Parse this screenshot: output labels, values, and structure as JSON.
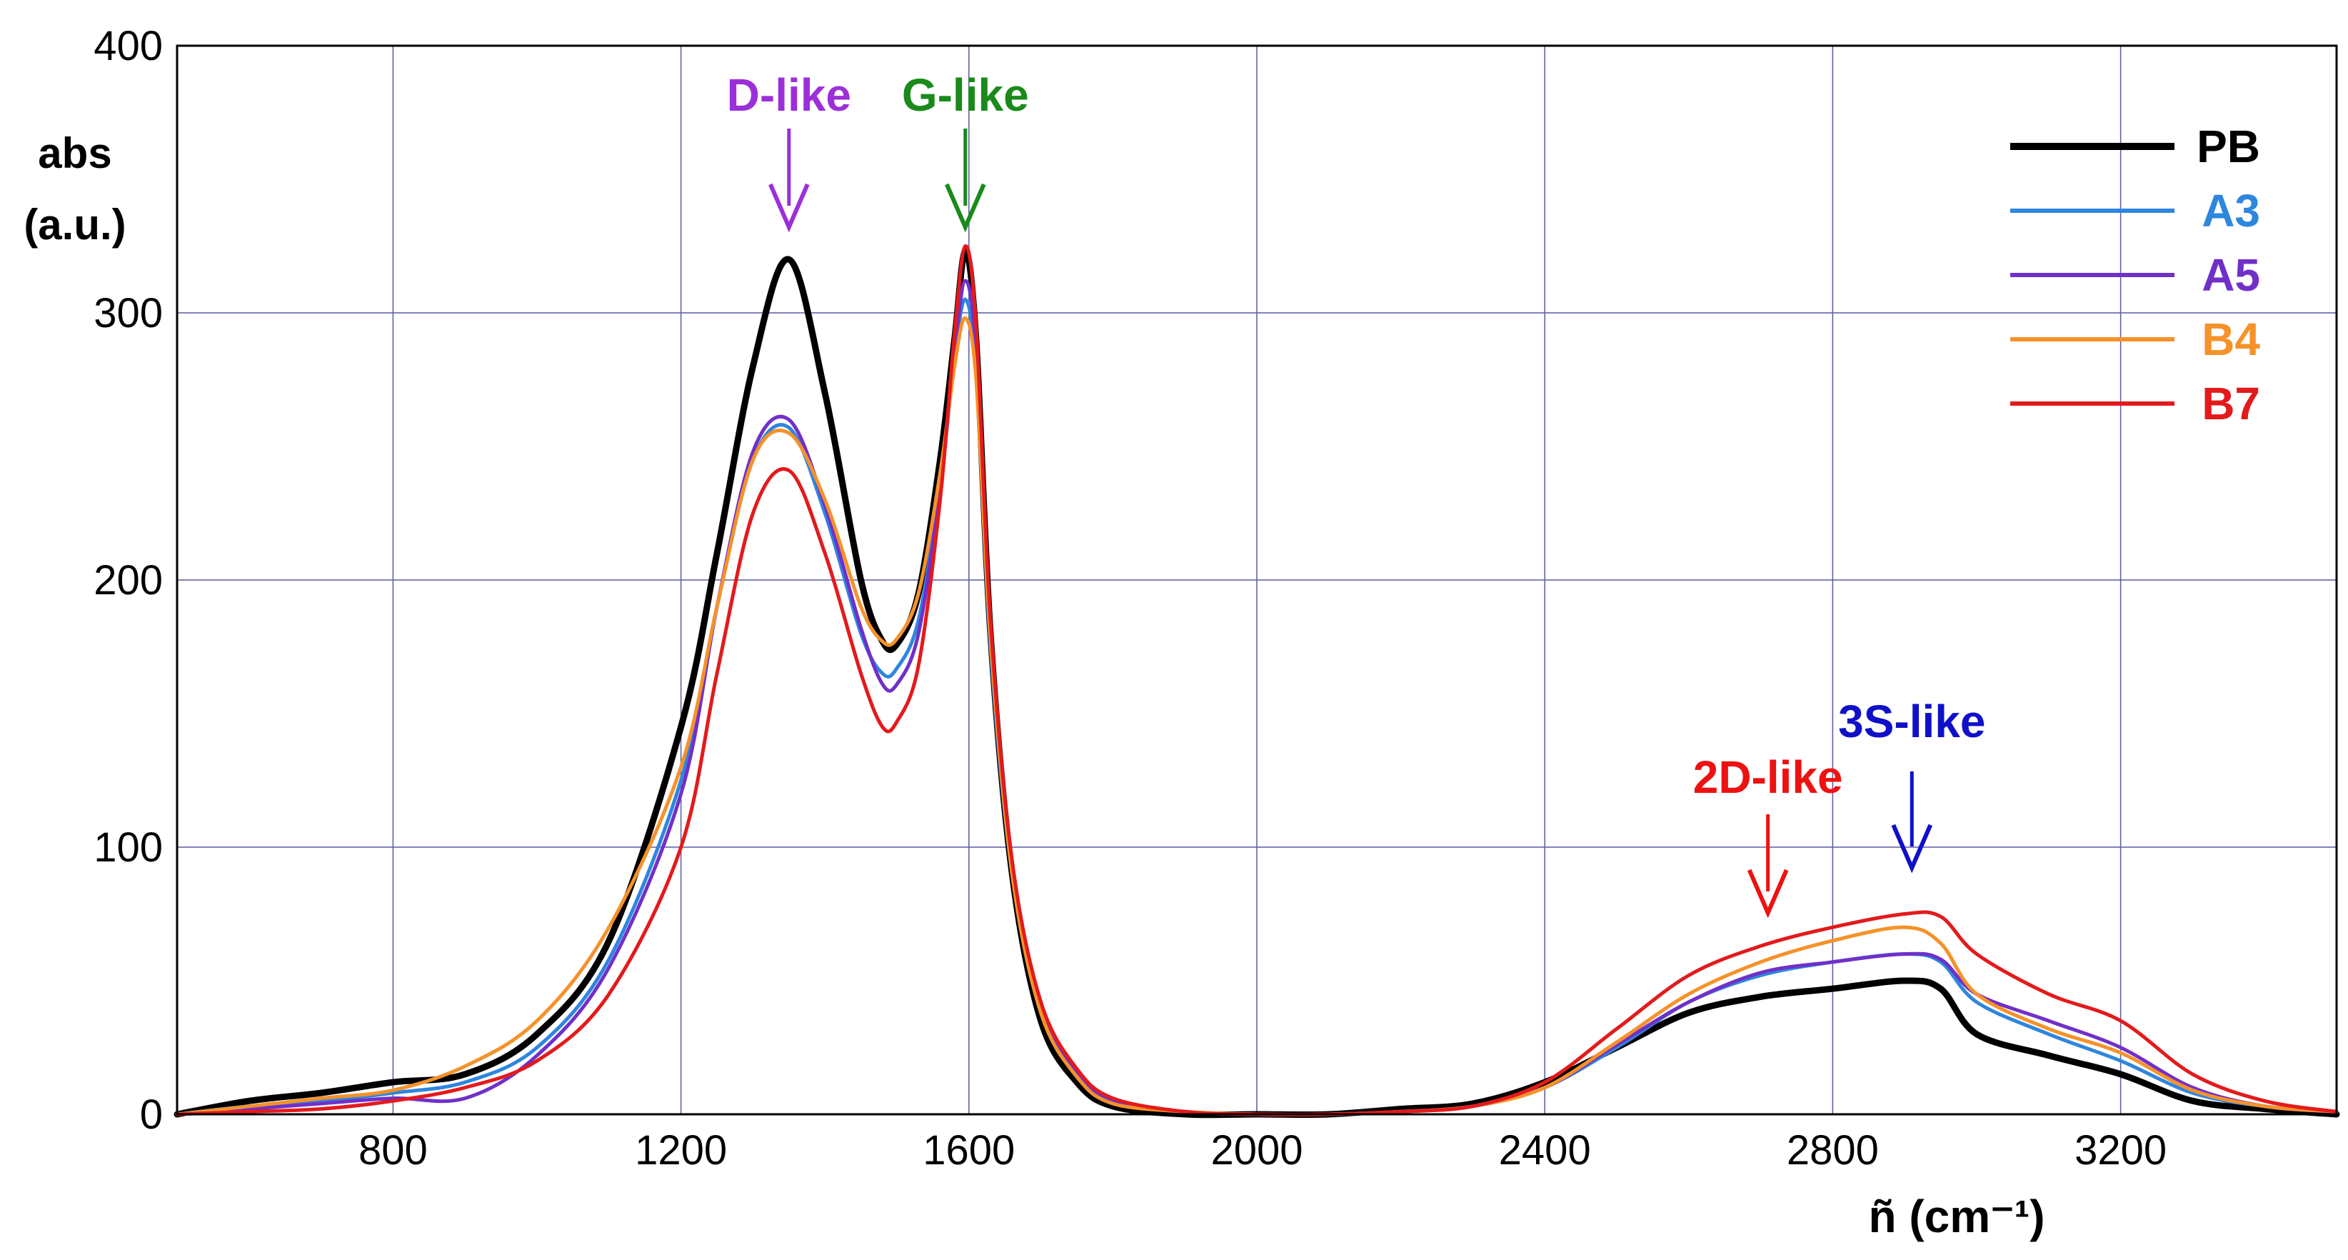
{
  "chart_data": {
    "type": "line",
    "title": "",
    "xlabel": "ñ (cm⁻¹)",
    "ylabel_line1": "abs",
    "ylabel_line2": "(a.u.)",
    "xlim": [
      500,
      3500
    ],
    "ylim": [
      0,
      400
    ],
    "x_ticks": [
      800,
      1200,
      1600,
      2000,
      2400,
      2800,
      3200
    ],
    "y_ticks": [
      0,
      100,
      200,
      300,
      400
    ],
    "x_gridlines": [
      500,
      800,
      1200,
      1600,
      2000,
      2400,
      2800,
      3200,
      3500
    ],
    "grid": true,
    "legend_position": "top-right",
    "annotations": [
      {
        "label": "D-like",
        "x": 1350,
        "color": "#9b30d9"
      },
      {
        "label": "G-like",
        "x": 1595,
        "color": "#1a8a1a"
      },
      {
        "label": "2D-like",
        "x": 2710,
        "color": "#ee1111"
      },
      {
        "label": "3S-like",
        "x": 2910,
        "color": "#1010c8"
      }
    ],
    "x": [
      500,
      600,
      700,
      800,
      900,
      1000,
      1100,
      1200,
      1250,
      1300,
      1350,
      1400,
      1450,
      1480,
      1500,
      1530,
      1560,
      1580,
      1595,
      1610,
      1630,
      1660,
      1700,
      1750,
      1800,
      1900,
      2000,
      2100,
      2200,
      2300,
      2400,
      2500,
      2600,
      2700,
      2800,
      2900,
      2950,
      3000,
      3100,
      3200,
      3300,
      3400,
      3500
    ],
    "series": [
      {
        "name": "PB",
        "color": "#000000",
        "width": 9,
        "values": [
          0,
          5,
          8,
          12,
          15,
          30,
          65,
          145,
          210,
          280,
          320,
          270,
          200,
          177,
          176,
          195,
          245,
          290,
          323,
          290,
          180,
          90,
          35,
          12,
          3,
          0,
          0,
          0,
          2,
          4,
          12,
          25,
          38,
          44,
          47,
          50,
          47,
          30,
          22,
          15,
          5,
          2,
          0
        ]
      },
      {
        "name": "A3",
        "color": "#2e86de",
        "width": 5,
        "values": [
          0,
          3,
          5,
          8,
          12,
          25,
          58,
          125,
          190,
          245,
          257,
          225,
          180,
          165,
          167,
          185,
          235,
          283,
          305,
          278,
          175,
          90,
          38,
          15,
          5,
          1,
          0,
          0,
          1,
          3,
          10,
          25,
          42,
          52,
          57,
          60,
          57,
          42,
          30,
          20,
          8,
          3,
          1
        ]
      },
      {
        "name": "A5",
        "color": "#7030c8",
        "width": 5,
        "values": [
          0,
          2,
          4,
          6,
          6,
          22,
          55,
          120,
          190,
          248,
          260,
          228,
          182,
          161,
          161,
          180,
          235,
          285,
          312,
          285,
          180,
          92,
          40,
          16,
          5,
          1,
          0,
          0,
          1,
          3,
          10,
          26,
          42,
          53,
          57,
          60,
          58,
          45,
          35,
          25,
          10,
          3,
          1
        ]
      },
      {
        "name": "B4",
        "color": "#f5922a",
        "width": 5,
        "values": [
          0,
          3,
          6,
          9,
          18,
          35,
          70,
          130,
          190,
          245,
          255,
          230,
          190,
          177,
          178,
          195,
          240,
          280,
          298,
          275,
          178,
          90,
          38,
          14,
          4,
          1,
          0,
          0,
          1,
          3,
          10,
          27,
          45,
          57,
          65,
          70,
          64,
          45,
          32,
          23,
          9,
          3,
          1
        ]
      },
      {
        "name": "B7",
        "color": "#e31a1c",
        "width": 5,
        "values": [
          0,
          1,
          2,
          5,
          10,
          20,
          45,
          100,
          165,
          225,
          241,
          210,
          165,
          145,
          147,
          168,
          230,
          292,
          325,
          295,
          185,
          95,
          42,
          17,
          6,
          1,
          0,
          0,
          1,
          3,
          12,
          32,
          52,
          63,
          70,
          75,
          74,
          60,
          45,
          35,
          15,
          5,
          1
        ]
      }
    ]
  }
}
